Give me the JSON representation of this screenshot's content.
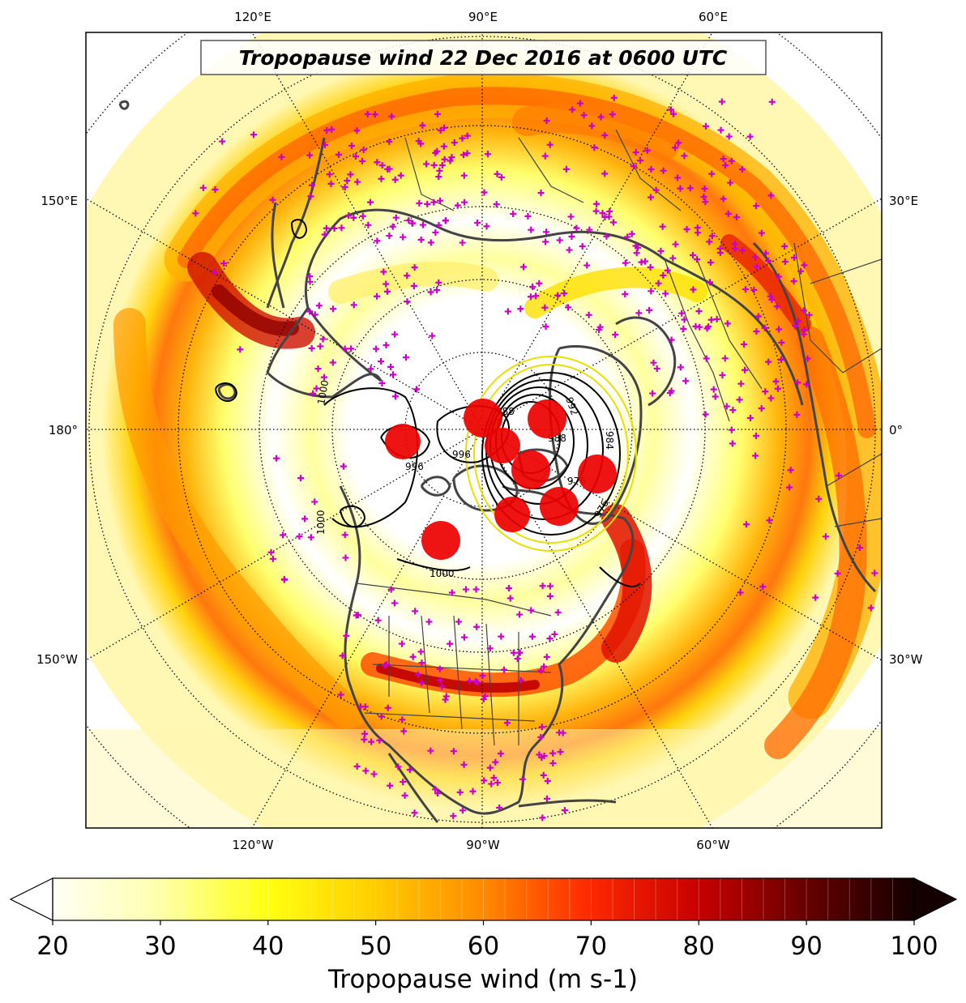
{
  "title": "Tropopause wind 22 Dec 2016 at 0600 UTC",
  "map": {
    "projection": "north-polar-stereographic",
    "top_longitude_labels": [
      "120°E",
      "90°E",
      "60°E"
    ],
    "bottom_longitude_labels": [
      "120°W",
      "90°W",
      "60°W"
    ],
    "left_longitude_labels": [
      "150°E",
      "180°",
      "150°W"
    ],
    "right_longitude_labels": [
      "30°E",
      "0°",
      "30°W"
    ],
    "contour_labels": [
      "1000",
      "996",
      "988",
      "992",
      "984",
      "976",
      "988",
      "996",
      "1000",
      "1000",
      "976"
    ],
    "colors": {
      "coastline": "#444444",
      "borders": "#444444",
      "graticule": "#000000",
      "station_marker": "#cc00cc",
      "low_marker": "#ee0000",
      "isobar": "#000000",
      "isobar_highlight": "#e8e000"
    }
  },
  "colorbar": {
    "label": "Tropopause wind (m s-1)",
    "tick_labels": [
      "20",
      "30",
      "40",
      "50",
      "60",
      "70",
      "80",
      "90",
      "100"
    ],
    "min": 20,
    "max": 100,
    "extend": "both",
    "colormap": "hot_r",
    "colors": [
      "#fffff5",
      "#ffffc0",
      "#ffff80",
      "#ffff00",
      "#ffd400",
      "#ffa500",
      "#ff7a00",
      "#ff4500",
      "#ff0000",
      "#d40000",
      "#a00000",
      "#6a0000",
      "#3c0000",
      "#140000"
    ]
  }
}
